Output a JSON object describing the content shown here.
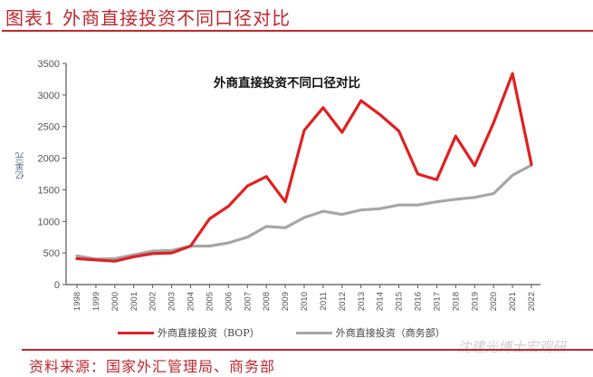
{
  "figure": {
    "title": "图表1 外商直接投资不同口径对比",
    "source": "资料来源：国家外汇管理局、商务部",
    "watermark": "沈建光博士宏观研"
  },
  "chart_data": {
    "type": "line",
    "title": "外商直接投资不同口径对比",
    "xlabel": "",
    "ylabel": "亿美元",
    "ylim": [
      0,
      3500
    ],
    "yticks": [
      0,
      500,
      1000,
      1500,
      2000,
      2500,
      3000,
      3500
    ],
    "grid": false,
    "legend_position": "bottom",
    "x": [
      "1998",
      "1999",
      "2000",
      "2001",
      "2002",
      "2003",
      "2004",
      "2005",
      "2006",
      "2007",
      "2008",
      "2009",
      "2010",
      "2011",
      "2012",
      "2013",
      "2014",
      "2015",
      "2016",
      "2017",
      "2018",
      "2019",
      "2020",
      "2021",
      "2022"
    ],
    "series": [
      {
        "name": "外商直接投资（BOP）",
        "color": "#e02020",
        "values": [
          410,
          390,
          370,
          440,
          490,
          500,
          610,
          1040,
          1240,
          1560,
          1710,
          1310,
          2440,
          2800,
          2410,
          2910,
          2690,
          2430,
          1750,
          1660,
          2350,
          1880,
          2560,
          3340,
          1900
        ]
      },
      {
        "name": "外商直接投资（商务部）",
        "color": "#a6a6a6",
        "values": [
          455,
          405,
          410,
          470,
          530,
          540,
          610,
          610,
          660,
          750,
          920,
          900,
          1060,
          1160,
          1110,
          1180,
          1200,
          1260,
          1260,
          1310,
          1350,
          1380,
          1440,
          1730,
          1890
        ]
      }
    ]
  }
}
